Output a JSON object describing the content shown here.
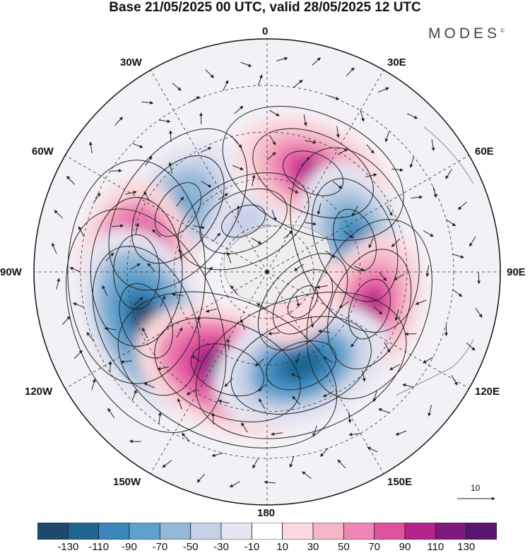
{
  "title": "Base 21/05/2025 00 UTC, valid 28/05/2025 12 UTC",
  "brand": "MODES",
  "brand_mark": "©",
  "longitude_labels": {
    "n0": "0",
    "n30e": "30E",
    "n60e": "60E",
    "n90e": "90E",
    "n120e": "120E",
    "n150e": "150E",
    "n180": "180",
    "n150w": "150W",
    "n120w": "120W",
    "n90w": "90W",
    "n60w": "60W",
    "n30w": "30W"
  },
  "colorbar": {
    "tick_labels": [
      "-130",
      "-110",
      "-90",
      "-70",
      "-50",
      "-30",
      "-10",
      "10",
      "30",
      "50",
      "70",
      "90",
      "110",
      "130"
    ],
    "colors": [
      "#1e4a6b",
      "#1f6590",
      "#3a86bd",
      "#5ea1cc",
      "#94b8d8",
      "#c6d0e6",
      "#e6e6f2",
      "#ffffff",
      "#fbd9dc",
      "#f5b6c7",
      "#ef86b4",
      "#e0529f",
      "#b5248a",
      "#7f197c",
      "#5a1570"
    ]
  },
  "reference_vector": {
    "value": "10"
  },
  "anomaly_centers": [
    {
      "id": "c-atl-n",
      "lon": -25,
      "lat": 72,
      "value": -45
    },
    {
      "id": "c-atl-e",
      "lon": 25,
      "lat": 55,
      "value": 95
    },
    {
      "id": "c-green",
      "lon": -55,
      "lat": 55,
      "value": -85
    },
    {
      "id": "c-wsib",
      "lon": 70,
      "lat": 60,
      "value": -95
    },
    {
      "id": "c-can",
      "lon": -90,
      "lat": 48,
      "value": 125
    },
    {
      "id": "c-asia",
      "lon": 110,
      "lat": 55,
      "value": 90
    },
    {
      "id": "c-pac-ne",
      "lon": -112,
      "lat": 48,
      "value": -135
    },
    {
      "id": "c-pac-n",
      "lon": -158,
      "lat": 56,
      "value": 130
    },
    {
      "id": "c-pac-w",
      "lon": 160,
      "lat": 58,
      "value": -120
    },
    {
      "id": "c-siberia",
      "lon": 130,
      "lat": 75,
      "value": 20
    }
  ]
}
